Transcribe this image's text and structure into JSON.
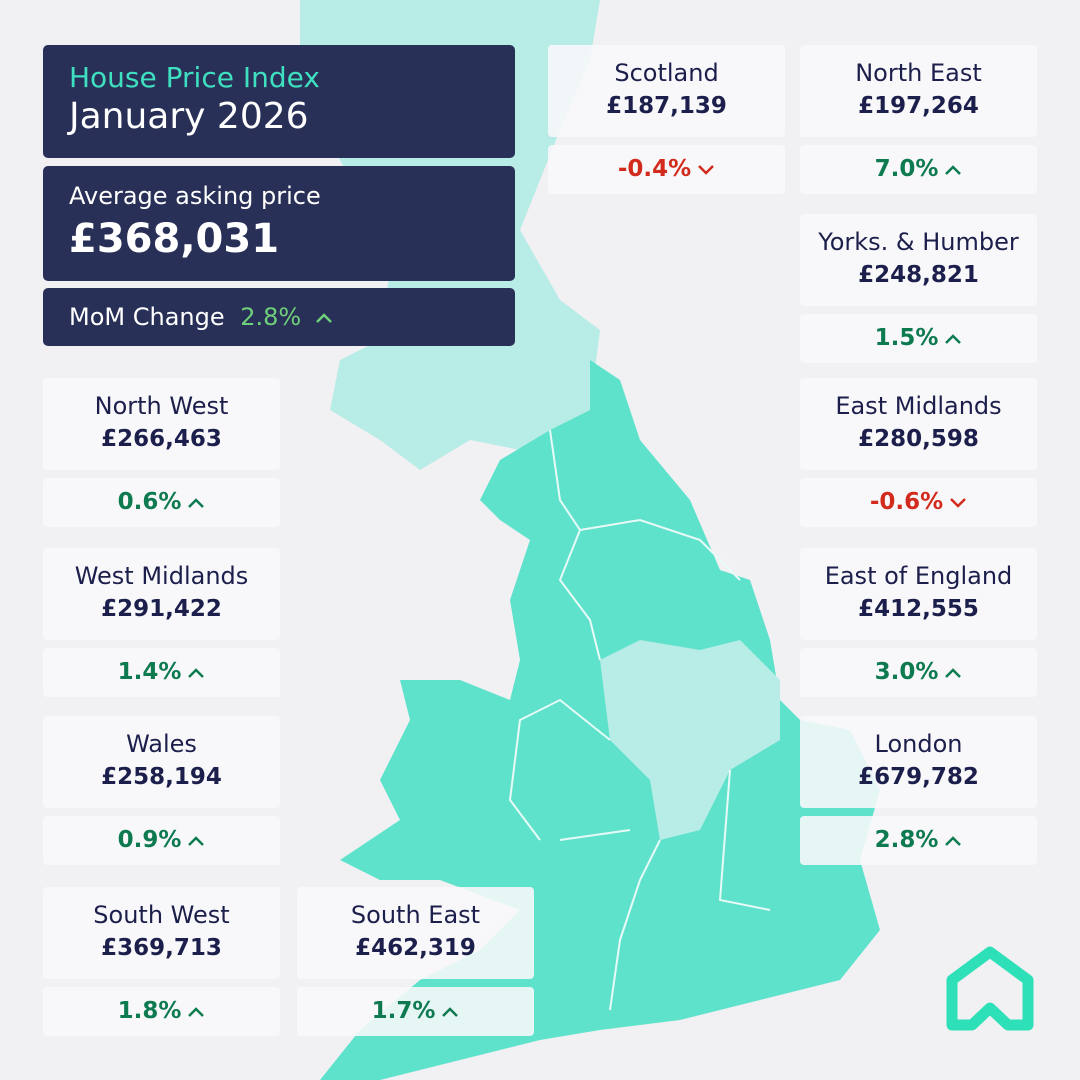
{
  "header": {
    "title": "House Price Index",
    "period": "January 2026"
  },
  "average": {
    "label": "Average asking price",
    "value": "£368,031"
  },
  "mom": {
    "label": "MoM Change",
    "value": "2.8%"
  },
  "regions": [
    {
      "name": "Scotland",
      "price": "£187,139",
      "change": "-0.4%"
    },
    {
      "name": "North East",
      "price": "£197,264",
      "change": "7.0%"
    },
    {
      "name": "Yorks. & Humber",
      "price": "£248,821",
      "change": "1.5%"
    },
    {
      "name": "North West",
      "price": "£266,463",
      "change": "0.6%"
    },
    {
      "name": "East Midlands",
      "price": "£280,598",
      "change": "-0.6%"
    },
    {
      "name": "West Midlands",
      "price": "£291,422",
      "change": "1.4%"
    },
    {
      "name": "East of England",
      "price": "£412,555",
      "change": "3.0%"
    },
    {
      "name": "Wales",
      "price": "£258,194",
      "change": "0.9%"
    },
    {
      "name": "London",
      "price": "£679,782",
      "change": "2.8%"
    },
    {
      "name": "South West",
      "price": "£369,713",
      "change": "1.8%"
    },
    {
      "name": "South East",
      "price": "£462,319",
      "change": "1.7%"
    }
  ]
}
